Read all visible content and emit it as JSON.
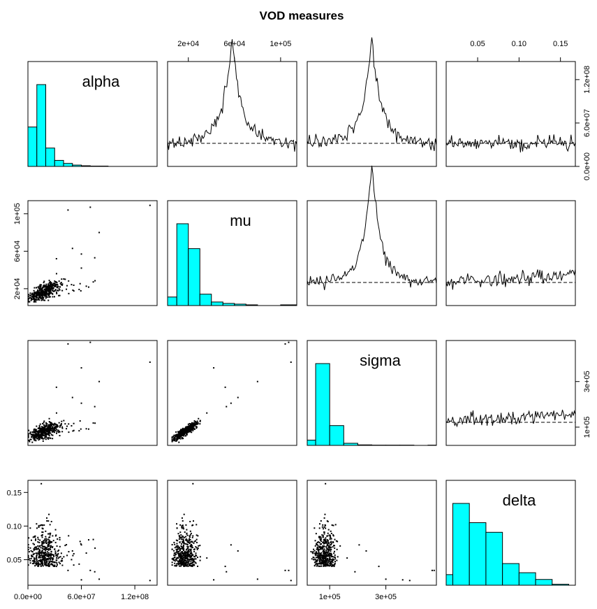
{
  "chart_data": {
    "type": "scatter",
    "title": "VOD measures",
    "variables": [
      "alpha",
      "mu",
      "sigma",
      "delta"
    ],
    "colors": {
      "histogram_fill": "#00FFFF",
      "frame": "#000000",
      "points": "#000000"
    },
    "axes": {
      "alpha": {
        "range": [
          0,
          145000000
        ],
        "ticks": [
          0,
          60000000,
          120000000
        ],
        "tick_labels": [
          "0.0e+00",
          "6.0e+07",
          "1.2e+08"
        ]
      },
      "mu": {
        "range": [
          2000,
          114000
        ],
        "ticks": [
          20000,
          60000,
          100000
        ],
        "tick_labels": [
          "2e+04",
          "6e+04",
          "1e+05"
        ]
      },
      "sigma": {
        "range": [
          20000,
          480000
        ],
        "ticks": [
          100000,
          300000
        ],
        "tick_labels": [
          "1e+05",
          "3e+05"
        ]
      },
      "delta": {
        "range": [
          0.012,
          0.168
        ],
        "ticks": [
          0.05,
          0.1,
          0.15
        ],
        "tick_labels": [
          "0.05",
          "0.10",
          "0.15"
        ]
      }
    },
    "histograms": {
      "alpha": {
        "bin_edges": [
          0,
          10000000,
          20000000,
          30000000,
          40000000,
          50000000,
          60000000,
          70000000,
          80000000,
          90000000,
          100000000,
          110000000,
          120000000,
          130000000,
          140000000
        ],
        "counts": [
          118,
          245,
          55,
          18,
          9,
          4,
          2,
          1,
          1,
          0,
          0,
          0,
          0,
          0
        ]
      },
      "mu": {
        "bin_edges": [
          0,
          10000,
          20000,
          30000,
          40000,
          50000,
          60000,
          70000,
          80000,
          90000,
          100000,
          110000,
          120000
        ],
        "counts": [
          12,
          115,
          80,
          16,
          5,
          3,
          2,
          1,
          0,
          0,
          1,
          1
        ]
      },
      "sigma": {
        "bin_edges": [
          0,
          50000,
          100000,
          150000,
          200000,
          250000,
          300000,
          350000,
          400000,
          450000,
          500000
        ],
        "counts": [
          20,
          310,
          75,
          8,
          2,
          1,
          1,
          1,
          0,
          1
        ]
      },
      "delta": {
        "bin_edges": [
          0.01,
          0.02,
          0.04,
          0.06,
          0.08,
          0.1,
          0.12,
          0.14,
          0.16
        ],
        "counts": [
          22,
          170,
          130,
          110,
          45,
          26,
          12,
          2
        ]
      }
    },
    "scatter_outliers": {
      "alpha_mu": [
        [
          45000000,
          104000
        ],
        [
          70000000,
          107000
        ],
        [
          137000000,
          109000
        ],
        [
          50000000,
          63000
        ],
        [
          60000000,
          57000
        ],
        [
          75000000,
          53000
        ],
        [
          32000000,
          52000
        ]
      ],
      "alpha_sigma": [
        [
          45000000,
          465000
        ],
        [
          70000000,
          472000
        ],
        [
          137000000,
          385000
        ],
        [
          30000000,
          275000
        ],
        [
          50000000,
          230000
        ],
        [
          60000000,
          195000
        ],
        [
          80000000,
          190000
        ]
      ],
      "mu_sigma": [
        [
          104000,
          470000
        ],
        [
          107000,
          475000
        ],
        [
          109000,
          380000
        ],
        [
          57000,
          225000
        ],
        [
          60000,
          205000
        ],
        [
          53000,
          190000
        ]
      ],
      "delta_alpha": [
        [
          0.163,
          15000000
        ],
        [
          0.063,
          50000000
        ],
        [
          0.072,
          63000000
        ],
        [
          0.032,
          80000000
        ],
        [
          0.019,
          137000000
        ]
      ],
      "delta_mu": [
        [
          0.163,
          24000
        ],
        [
          0.021,
          80000
        ],
        [
          0.034,
          107000
        ],
        [
          0.019,
          109000
        ]
      ],
      "delta_sigma": [
        [
          0.163,
          85000
        ],
        [
          0.062,
          300000
        ],
        [
          0.02,
          360000
        ],
        [
          0.034,
          465000
        ]
      ]
    },
    "acf_note": "off-diagonal upper panels show autocorrelation traces with a dashed reference line",
    "grid": false,
    "legend": "none"
  }
}
